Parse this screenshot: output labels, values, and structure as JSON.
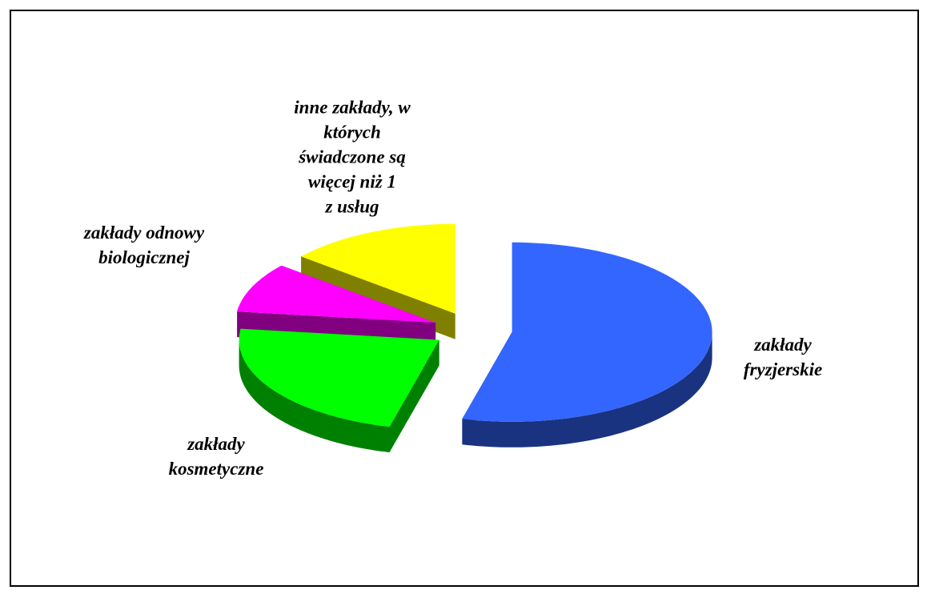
{
  "chart_data": {
    "type": "pie3d",
    "categories": [
      "zakłady\nfryzjerskie",
      "zakłady\nkosmetyczne",
      "zakłady odnowy\nbiologicznej",
      "inne zakłady, w\nktórych\nświadczone są\nwięcej niż 1\nz usług"
    ],
    "values": [
      54,
      23,
      9,
      14
    ],
    "colors": [
      "#3366ff",
      "#00ff00",
      "#ff00ff",
      "#ffff00"
    ]
  }
}
